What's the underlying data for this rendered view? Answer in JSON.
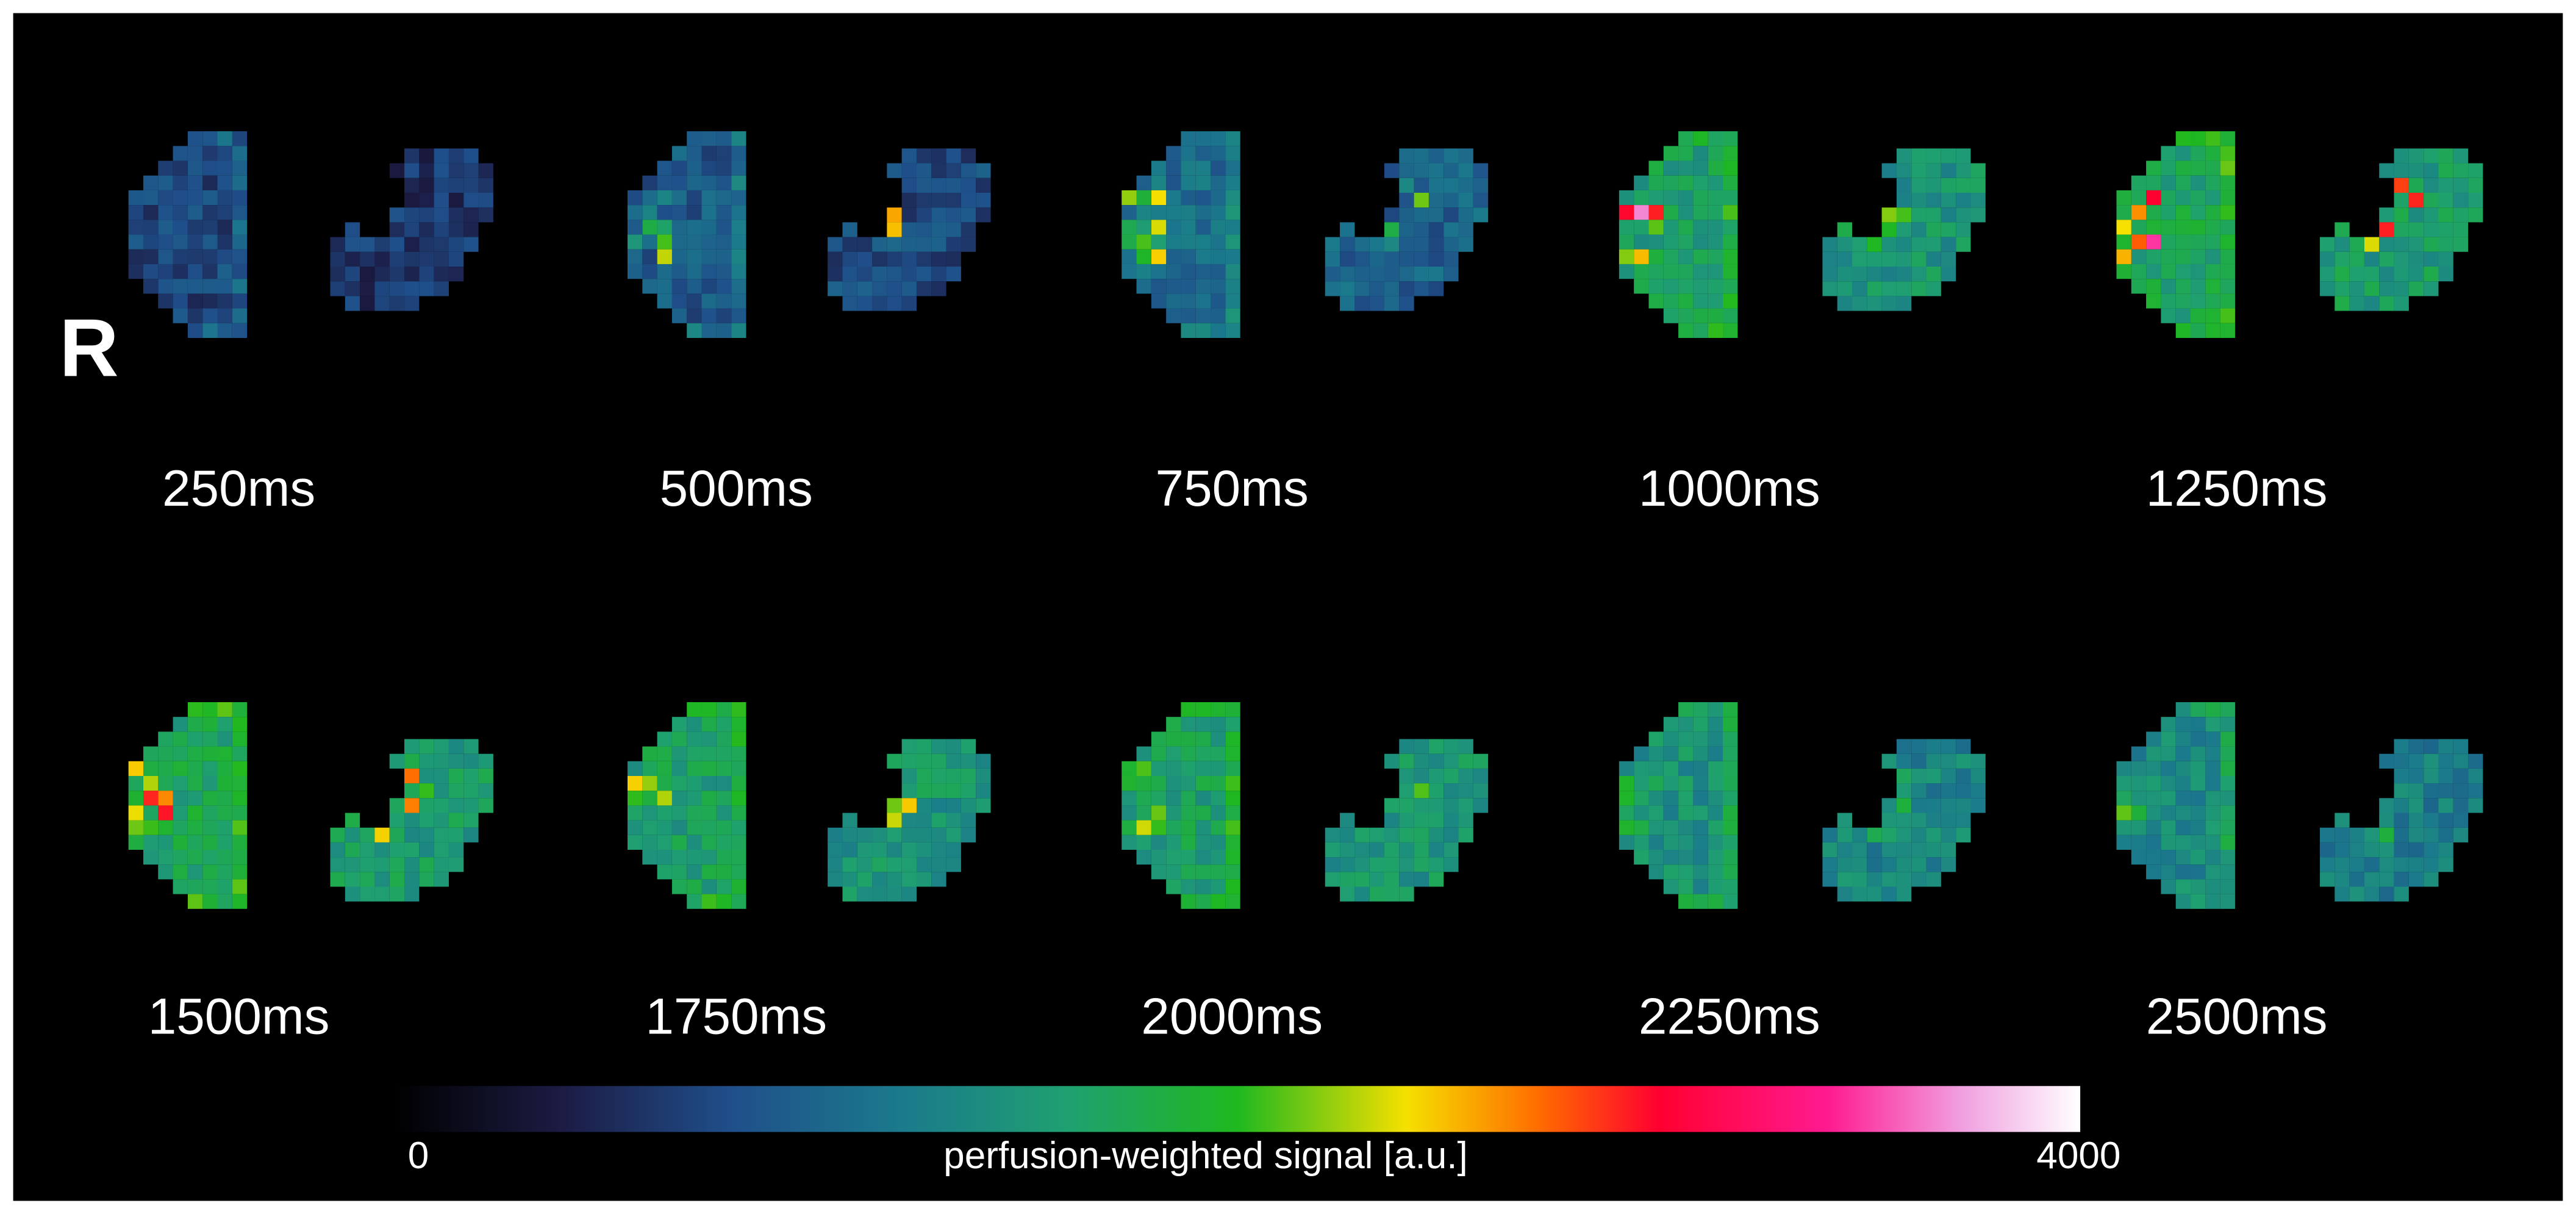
{
  "marker": "R",
  "panels": [
    {
      "label": "250ms"
    },
    {
      "label": "500ms"
    },
    {
      "label": "750ms"
    },
    {
      "label": "1000ms"
    },
    {
      "label": "1250ms"
    },
    {
      "label": "1500ms"
    },
    {
      "label": "1750ms"
    },
    {
      "label": "2000ms"
    },
    {
      "label": "2250ms"
    },
    {
      "label": "2500ms"
    }
  ],
  "colorbar": {
    "min_label": "0",
    "max_label": "4000",
    "title": "perfusion-weighted signal [a.u.]"
  }
}
